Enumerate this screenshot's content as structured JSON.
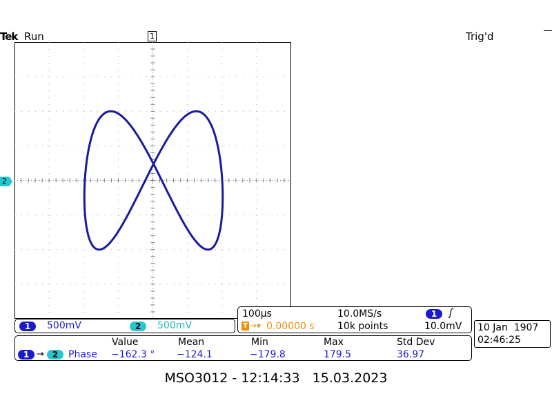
{
  "header": {
    "brand": "Tek",
    "status": "Run",
    "trigger_state": "Trig'd",
    "trigger_marker": "1",
    "ch2_marker": "2"
  },
  "channels": {
    "ch1": {
      "label": "1",
      "scale": "500mV",
      "color": "#1a1acd"
    },
    "ch2": {
      "label": "2",
      "scale": "500mV",
      "color": "#25c7cf"
    }
  },
  "timebase": {
    "time_div": "100µs",
    "sample_rate": "10.0MS/s",
    "trig_source": "1",
    "trig_slope": "ʃ",
    "trig_pos_icon": "T",
    "trig_pos": "0.00000 s",
    "record_length": "10k points",
    "trig_level": "10.0mV"
  },
  "datetime": {
    "date": "10 Jan  1907",
    "time": "02:46:25"
  },
  "measurement": {
    "headers": [
      "Value",
      "Mean",
      "Min",
      "Max",
      "Std Dev"
    ],
    "source1": "1",
    "source2": "2",
    "type": "Phase",
    "value": "−162.3 °",
    "mean": "−124.1",
    "min": "−179.8",
    "max": "179.5",
    "std_dev": "36.97"
  },
  "caption": "MSO3012 - 12:14:33   15.03.2023",
  "waveform": {
    "color": "#1a1a9c",
    "x_amp": 1.0,
    "y_amp": 1.0,
    "freq_ratio": "1:2",
    "phase_deg": -162.3
  }
}
